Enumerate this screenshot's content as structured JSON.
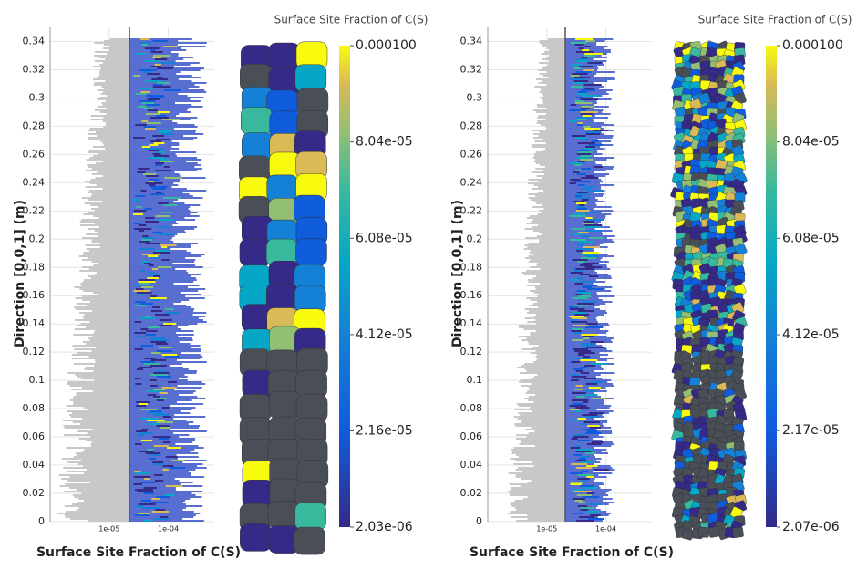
{
  "panels": [
    {
      "y_label": "Direction [0,0,1] (m)",
      "x_label": "Surface Site Fraction of C(S)",
      "x_scale": "log",
      "xlim": [
        1e-06,
        0.0006
      ],
      "xticks": [
        {
          "value": 1e-05,
          "label": "1e-05"
        },
        {
          "value": 0.0001,
          "label": "1e-04"
        }
      ],
      "ylim": [
        0,
        0.35
      ],
      "yticks": [
        0,
        0.02,
        0.04,
        0.06,
        0.08,
        0.1,
        0.12,
        0.14,
        0.16,
        0.18,
        0.2,
        0.22,
        0.24,
        0.26,
        0.28,
        0.3,
        0.32,
        0.34
      ],
      "grid": true,
      "colorbar": {
        "title": "Surface Site Fraction of C(S)",
        "lim": [
          2.03e-06,
          0.0001
        ],
        "ticks": [
          {
            "value": 0.0001,
            "label": "0.000100"
          },
          {
            "value": 8.04e-05,
            "label": "8.04e-05"
          },
          {
            "value": 6.08e-05,
            "label": "6.08e-05"
          },
          {
            "value": 4.12e-05,
            "label": "4.12e-05"
          },
          {
            "value": 2.16e-05,
            "label": "2.16e-05"
          },
          {
            "value": 2.03e-06,
            "label": "2.03e-06"
          }
        ]
      }
    },
    {
      "y_label": "Direction [0,0,1] (m)",
      "x_label": "Surface Site Fraction of C(S)",
      "x_scale": "log",
      "xlim": [
        1e-06,
        0.0006
      ],
      "xticks": [
        {
          "value": 1e-05,
          "label": "1e-05"
        },
        {
          "value": 0.0001,
          "label": "1e-04"
        }
      ],
      "ylim": [
        0,
        0.35
      ],
      "yticks": [
        0,
        0.02,
        0.04,
        0.06,
        0.08,
        0.1,
        0.12,
        0.14,
        0.16,
        0.18,
        0.2,
        0.22,
        0.24,
        0.26,
        0.28,
        0.3,
        0.32,
        0.34
      ],
      "grid": true,
      "colorbar": {
        "title": "Surface Site Fraction of C(S)",
        "lim": [
          2.07e-06,
          0.0001
        ],
        "ticks": [
          {
            "value": 0.0001,
            "label": "0.000100"
          },
          {
            "value": 8.04e-05,
            "label": "8.04e-05"
          },
          {
            "value": 6.08e-05,
            "label": "6.08e-05"
          },
          {
            "value": 4.12e-05,
            "label": "4.12e-05"
          },
          {
            "value": 2.17e-05,
            "label": "2.17e-05"
          },
          {
            "value": 2.07e-06,
            "label": "2.07e-06"
          }
        ]
      }
    }
  ]
}
